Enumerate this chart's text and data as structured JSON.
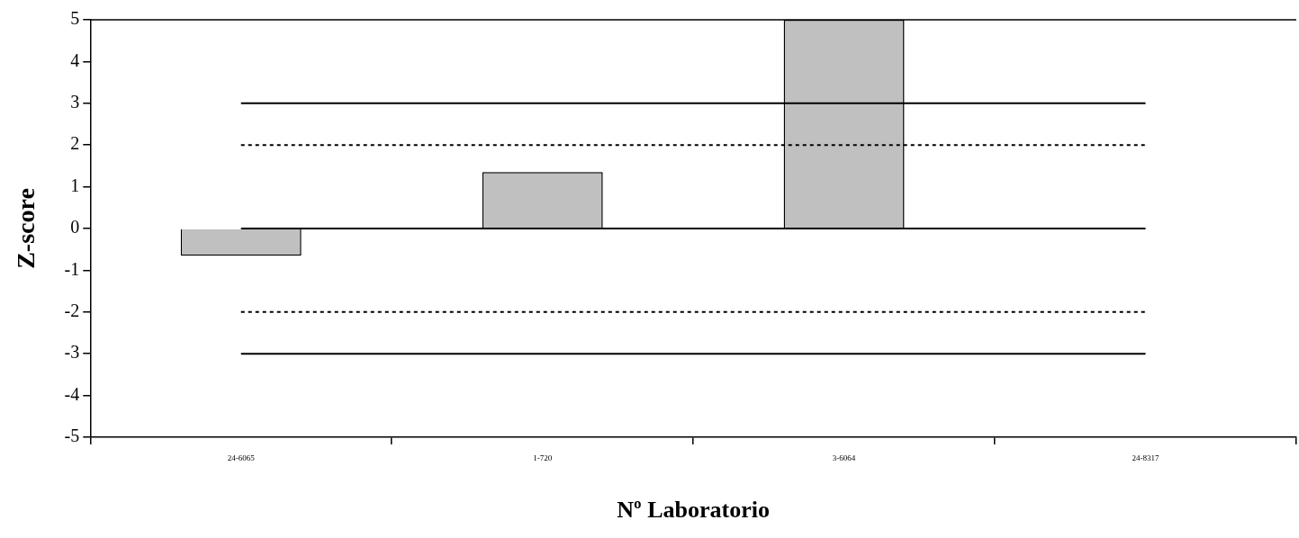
{
  "chart_data": {
    "type": "bar",
    "xlabel": "Nº Laboratorio",
    "ylabel": "Z-score",
    "categories": [
      "24-6065",
      "1-720",
      "3-6064",
      "24-8317"
    ],
    "values": [
      -0.65,
      1.35,
      5,
      null
    ],
    "color": "#c0c0c0",
    "ylim": [
      -5,
      5
    ],
    "yticks": [
      -5,
      -4,
      -3,
      -2,
      -1,
      0,
      1,
      2,
      3,
      4,
      5
    ],
    "grid": false,
    "legend": false,
    "ref_lines": [
      {
        "axis": "y",
        "value": 3,
        "line_style": "solid",
        "color": "#000000"
      },
      {
        "axis": "y",
        "value": 2,
        "line_style": "dotted",
        "color": "#000000"
      },
      {
        "axis": "y",
        "value": 0,
        "line_style": "solid",
        "color": "#000000"
      },
      {
        "axis": "y",
        "value": -2,
        "line_style": "dotted",
        "color": "#000000"
      },
      {
        "axis": "y",
        "value": -3,
        "line_style": "solid",
        "color": "#000000"
      }
    ]
  }
}
